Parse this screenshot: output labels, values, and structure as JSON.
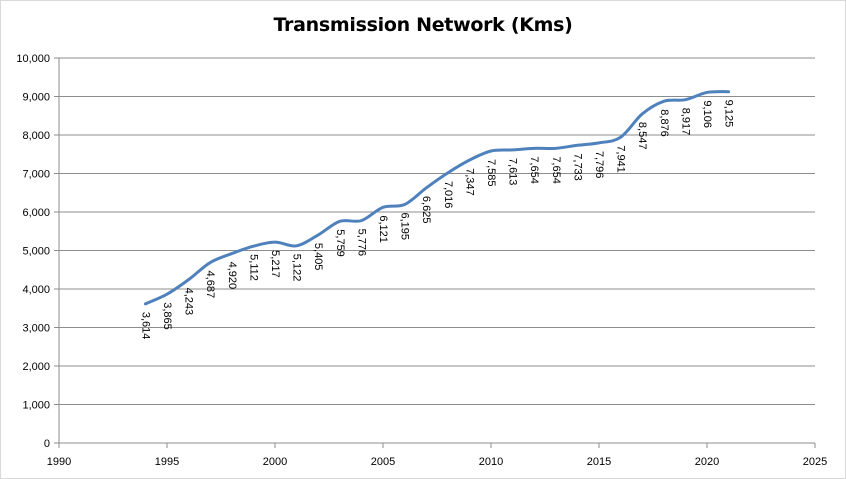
{
  "chart_data": {
    "type": "line",
    "title": "Transmission Network (Kms)",
    "xlabel": "",
    "ylabel": "",
    "xlim": [
      1990,
      2025
    ],
    "ylim": [
      0,
      10000
    ],
    "x_ticks": [
      1990,
      1995,
      2000,
      2005,
      2010,
      2015,
      2020,
      2025
    ],
    "y_ticks": [
      0,
      1000,
      2000,
      3000,
      4000,
      5000,
      6000,
      7000,
      8000,
      9000,
      10000
    ],
    "x_tick_labels": [
      "1990",
      "1995",
      "2000",
      "2005",
      "2010",
      "2015",
      "2020",
      "2025"
    ],
    "y_tick_labels": [
      "0",
      "1,000",
      "2,000",
      "3,000",
      "4,000",
      "5,000",
      "6,000",
      "7,000",
      "8,000",
      "9,000",
      "10,000"
    ],
    "grid": "horizontal",
    "legend": "none",
    "line_color": "#4f81bd",
    "series": [
      {
        "x": [
          1994,
          1995,
          1996,
          1997,
          1998,
          1999,
          2000,
          2001,
          2002,
          2003,
          2004,
          2005,
          2006,
          2007,
          2008,
          2009,
          2010,
          2011,
          2012,
          2013,
          2014,
          2015,
          2016,
          2017,
          2018,
          2019,
          2020,
          2021
        ],
        "values": [
          3614,
          3865,
          4243,
          4687,
          4920,
          5112,
          5217,
          5122,
          5405,
          5759,
          5776,
          6121,
          6195,
          6625,
          7016,
          7347,
          7585,
          7613,
          7654,
          7654,
          7733,
          7796,
          7941,
          8547,
          8876,
          8917,
          9106,
          9125
        ],
        "labels": [
          "3,614",
          "3,865",
          "4,243",
          "4,687",
          "4,920",
          "5,112",
          "5,217",
          "5,122",
          "5,405",
          "5,759",
          "5,776",
          "6,121",
          "6,195",
          "6,625",
          "7,016",
          "7,347",
          "7,585",
          "7,613",
          "7,654",
          "7,654",
          "7,733",
          "7,796",
          "7,941",
          "8,547",
          "8,876",
          "8,917",
          "9,106",
          "9,125"
        ]
      }
    ]
  }
}
